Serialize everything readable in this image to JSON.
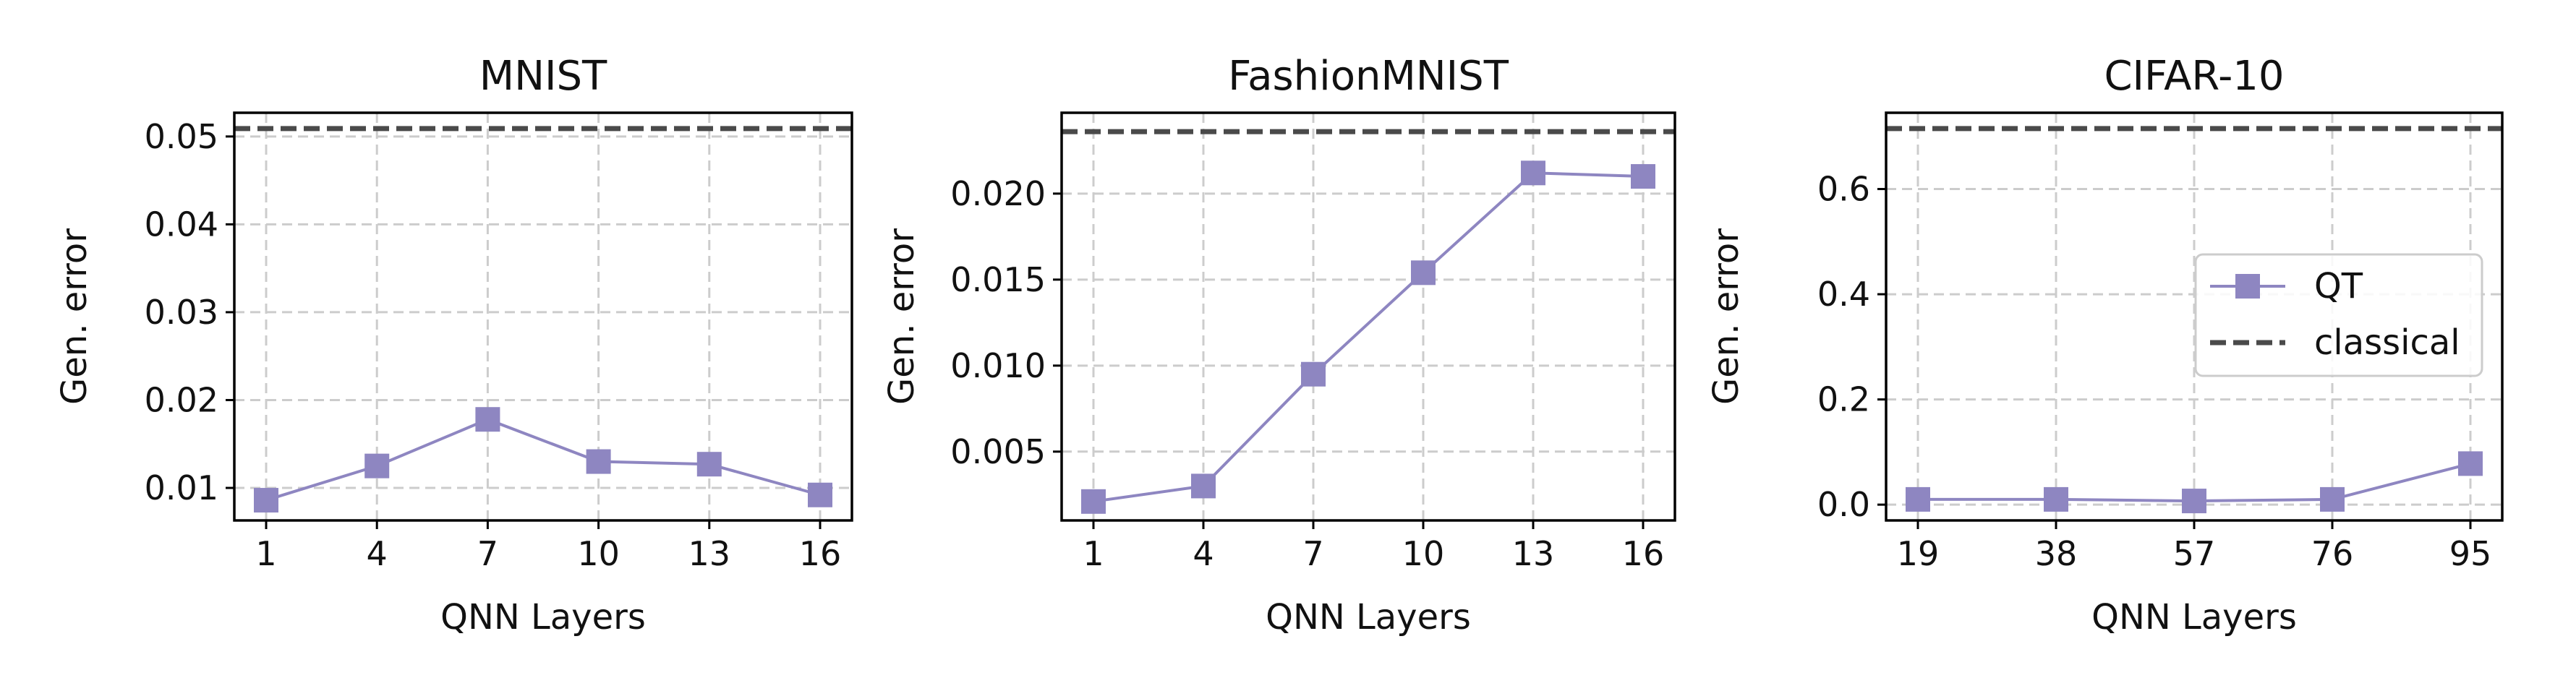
{
  "colors": {
    "qt": "#8e86c1",
    "classical": "#4a4a4a",
    "grid": "#cccccc",
    "axis": "#000000"
  },
  "legend": {
    "qt_label": "QT",
    "classical_label": "classical",
    "placement": "right-center of CIFAR-10 panel"
  },
  "chart_data": [
    {
      "type": "line",
      "title": "MNIST",
      "xlabel": "QNN Layers",
      "ylabel": "Gen. error",
      "categories": [
        "1",
        "4",
        "7",
        "10",
        "13",
        "16"
      ],
      "series": [
        {
          "name": "QT",
          "values": [
            0.0086,
            0.0125,
            0.0178,
            0.013,
            0.0127,
            0.0092
          ]
        }
      ],
      "baseline": {
        "name": "classical",
        "value": 0.0509
      },
      "ylim": [
        0.0063,
        0.0527
      ],
      "yticks": [
        0.01,
        0.02,
        0.03,
        0.04,
        0.05
      ],
      "ytick_labels": [
        "0.01",
        "0.02",
        "0.03",
        "0.04",
        "0.05"
      ],
      "grid": true
    },
    {
      "type": "line",
      "title": "FashionMNIST",
      "xlabel": "QNN Layers",
      "ylabel": "Gen. error",
      "categories": [
        "1",
        "4",
        "7",
        "10",
        "13",
        "16"
      ],
      "series": [
        {
          "name": "QT",
          "values": [
            0.0021,
            0.003,
            0.0095,
            0.0154,
            0.0212,
            0.021
          ]
        }
      ],
      "baseline": {
        "name": "classical",
        "value": 0.0236
      },
      "ylim": [
        0.001,
        0.0247
      ],
      "yticks": [
        0.005,
        0.01,
        0.015,
        0.02
      ],
      "ytick_labels": [
        "0.005",
        "0.010",
        "0.015",
        "0.020"
      ],
      "grid": true
    },
    {
      "type": "line",
      "title": "CIFAR-10",
      "xlabel": "QNN Layers",
      "ylabel": "Gen. error",
      "categories": [
        "19",
        "38",
        "57",
        "76",
        "95"
      ],
      "series": [
        {
          "name": "QT",
          "values": [
            0.01,
            0.01,
            0.007,
            0.01,
            0.078
          ]
        }
      ],
      "baseline": {
        "name": "classical",
        "value": 0.715
      },
      "ylim": [
        -0.03,
        0.745
      ],
      "yticks": [
        0.0,
        0.2,
        0.4,
        0.6
      ],
      "ytick_labels": [
        "0.0",
        "0.2",
        "0.4",
        "0.6"
      ],
      "grid": true
    }
  ]
}
